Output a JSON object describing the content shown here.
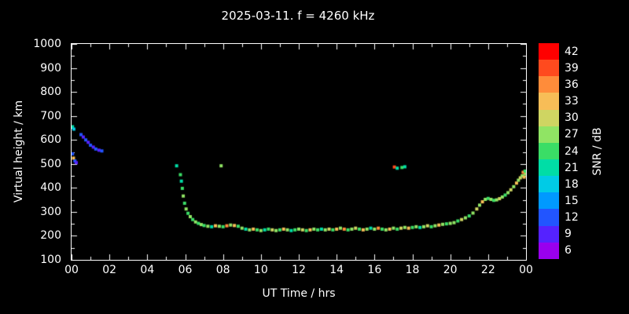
{
  "title": "2025-03-11. f = 4260 kHz",
  "axes": {
    "x_label": "UT Time / hrs",
    "y_label": "Virtual height / km",
    "x_tick_values": [
      0,
      2,
      4,
      6,
      8,
      10,
      12,
      14,
      16,
      18,
      20,
      22,
      24
    ],
    "x_tick_labels": [
      "00",
      "02",
      "04",
      "06",
      "08",
      "10",
      "12",
      "14",
      "16",
      "18",
      "20",
      "22",
      "00"
    ],
    "y_tick_values": [
      100,
      200,
      300,
      400,
      500,
      600,
      700,
      800,
      900,
      1000
    ]
  },
  "colorbar": {
    "label": "SNR / dB",
    "tick_values": [
      42,
      39,
      36,
      33,
      30,
      27,
      24,
      21,
      18,
      15,
      12,
      9,
      6
    ],
    "segments": [
      {
        "value": 42,
        "color": "#ff0000"
      },
      {
        "value": 39,
        "color": "#ff4a1e"
      },
      {
        "value": 36,
        "color": "#ff8c3a"
      },
      {
        "value": 33,
        "color": "#f7bd57"
      },
      {
        "value": 30,
        "color": "#cfd562"
      },
      {
        "value": 27,
        "color": "#90e464"
      },
      {
        "value": 24,
        "color": "#3add66"
      },
      {
        "value": 21,
        "color": "#00dda6"
      },
      {
        "value": 18,
        "color": "#00cbe6"
      },
      {
        "value": 15,
        "color": "#0099ff"
      },
      {
        "value": 12,
        "color": "#2255ff"
      },
      {
        "value": 9,
        "color": "#5522ff"
      },
      {
        "value": 6,
        "color": "#9900ee"
      }
    ]
  },
  "chart_data": {
    "type": "scatter",
    "title": "2025-03-11. f = 4260 kHz",
    "xlabel": "UT Time / hrs",
    "ylabel": "Virtual height / km",
    "xlim": [
      0,
      24
    ],
    "ylim": [
      100,
      1000
    ],
    "legend": "colorbar SNR / dB, 6 to 42",
    "points_format": [
      "ut_hours",
      "virtual_height_km",
      "snr_db"
    ],
    "points": [
      [
        0.05,
        655,
        21
      ],
      [
        0.12,
        645,
        18
      ],
      [
        0.05,
        542,
        12
      ],
      [
        0.1,
        524,
        33
      ],
      [
        0.18,
        512,
        12
      ],
      [
        0.25,
        505,
        9
      ],
      [
        0.5,
        622,
        12
      ],
      [
        0.62,
        612,
        9
      ],
      [
        0.75,
        600,
        12
      ],
      [
        0.88,
        590,
        9
      ],
      [
        1.0,
        578,
        12
      ],
      [
        1.15,
        570,
        9
      ],
      [
        1.28,
        562,
        12
      ],
      [
        1.45,
        557,
        9
      ],
      [
        1.6,
        554,
        12
      ],
      [
        5.55,
        492,
        21
      ],
      [
        5.75,
        455,
        24
      ],
      [
        5.8,
        428,
        21
      ],
      [
        5.85,
        398,
        24
      ],
      [
        5.9,
        366,
        27
      ],
      [
        5.97,
        336,
        24
      ],
      [
        6.05,
        312,
        27
      ],
      [
        6.15,
        294,
        24
      ],
      [
        6.27,
        280,
        27
      ],
      [
        6.4,
        268,
        24
      ],
      [
        6.55,
        258,
        27
      ],
      [
        6.7,
        252,
        24
      ],
      [
        6.85,
        247,
        27
      ],
      [
        7.0,
        243,
        24
      ],
      [
        7.2,
        240,
        27
      ],
      [
        7.4,
        238,
        21
      ],
      [
        7.6,
        242,
        33
      ],
      [
        7.8,
        240,
        27
      ],
      [
        8.0,
        238,
        24
      ],
      [
        8.2,
        242,
        36
      ],
      [
        8.4,
        245,
        27
      ],
      [
        8.6,
        243,
        33
      ],
      [
        8.8,
        240,
        24
      ],
      [
        9.0,
        232,
        27
      ],
      [
        9.2,
        228,
        21
      ],
      [
        9.4,
        225,
        27
      ],
      [
        9.6,
        228,
        33
      ],
      [
        9.8,
        225,
        24
      ],
      [
        10.0,
        222,
        27
      ],
      [
        10.2,
        225,
        21
      ],
      [
        10.4,
        228,
        24
      ],
      [
        10.6,
        225,
        30
      ],
      [
        10.8,
        222,
        27
      ],
      [
        11.0,
        225,
        24
      ],
      [
        11.2,
        228,
        33
      ],
      [
        11.4,
        225,
        27
      ],
      [
        11.6,
        222,
        21
      ],
      [
        11.8,
        225,
        24
      ],
      [
        12.0,
        228,
        27
      ],
      [
        12.2,
        225,
        30
      ],
      [
        12.4,
        222,
        24
      ],
      [
        12.6,
        225,
        33
      ],
      [
        12.8,
        228,
        27
      ],
      [
        13.0,
        225,
        24
      ],
      [
        13.2,
        228,
        21
      ],
      [
        13.4,
        225,
        27
      ],
      [
        13.6,
        228,
        30
      ],
      [
        13.8,
        225,
        24
      ],
      [
        14.0,
        228,
        33
      ],
      [
        14.2,
        232,
        27
      ],
      [
        14.4,
        228,
        36
      ],
      [
        14.6,
        225,
        24
      ],
      [
        14.8,
        228,
        27
      ],
      [
        15.0,
        232,
        30
      ],
      [
        15.2,
        228,
        24
      ],
      [
        15.4,
        225,
        33
      ],
      [
        15.6,
        228,
        27
      ],
      [
        15.8,
        232,
        21
      ],
      [
        16.0,
        228,
        27
      ],
      [
        16.2,
        232,
        36
      ],
      [
        16.4,
        228,
        24
      ],
      [
        16.6,
        225,
        27
      ],
      [
        16.8,
        228,
        33
      ],
      [
        17.0,
        232,
        27
      ],
      [
        17.2,
        228,
        24
      ],
      [
        17.4,
        232,
        30
      ],
      [
        17.6,
        235,
        27
      ],
      [
        17.8,
        232,
        33
      ],
      [
        18.0,
        235,
        24
      ],
      [
        18.2,
        238,
        27
      ],
      [
        18.4,
        235,
        21
      ],
      [
        18.6,
        238,
        27
      ],
      [
        18.8,
        242,
        30
      ],
      [
        19.0,
        238,
        24
      ],
      [
        19.2,
        242,
        27
      ],
      [
        19.4,
        245,
        33
      ],
      [
        19.6,
        248,
        27
      ],
      [
        19.8,
        250,
        24
      ],
      [
        20.0,
        252,
        27
      ],
      [
        7.9,
        492,
        27
      ],
      [
        17.05,
        487,
        39
      ],
      [
        17.2,
        482,
        21
      ],
      [
        17.45,
        485,
        24
      ],
      [
        17.6,
        488,
        21
      ],
      [
        20.2,
        255,
        27
      ],
      [
        20.4,
        262,
        24
      ],
      [
        20.6,
        268,
        30
      ],
      [
        20.8,
        275,
        27
      ],
      [
        21.0,
        283,
        24
      ],
      [
        21.2,
        295,
        27
      ],
      [
        21.4,
        312,
        30
      ],
      [
        21.55,
        328,
        27
      ],
      [
        21.7,
        342,
        33
      ],
      [
        21.85,
        352,
        27
      ],
      [
        22.0,
        356,
        24
      ],
      [
        22.15,
        352,
        27
      ],
      [
        22.3,
        348,
        24
      ],
      [
        22.45,
        350,
        27
      ],
      [
        22.6,
        355,
        30
      ],
      [
        22.75,
        362,
        27
      ],
      [
        22.9,
        370,
        24
      ],
      [
        23.05,
        380,
        27
      ],
      [
        23.2,
        392,
        30
      ],
      [
        23.35,
        405,
        27
      ],
      [
        23.5,
        420,
        33
      ],
      [
        23.6,
        432,
        27
      ],
      [
        23.7,
        442,
        30
      ],
      [
        23.8,
        450,
        27
      ],
      [
        23.9,
        445,
        33
      ],
      [
        23.95,
        458,
        27
      ],
      [
        23.85,
        465,
        36
      ],
      [
        23.95,
        470,
        24
      ]
    ]
  }
}
